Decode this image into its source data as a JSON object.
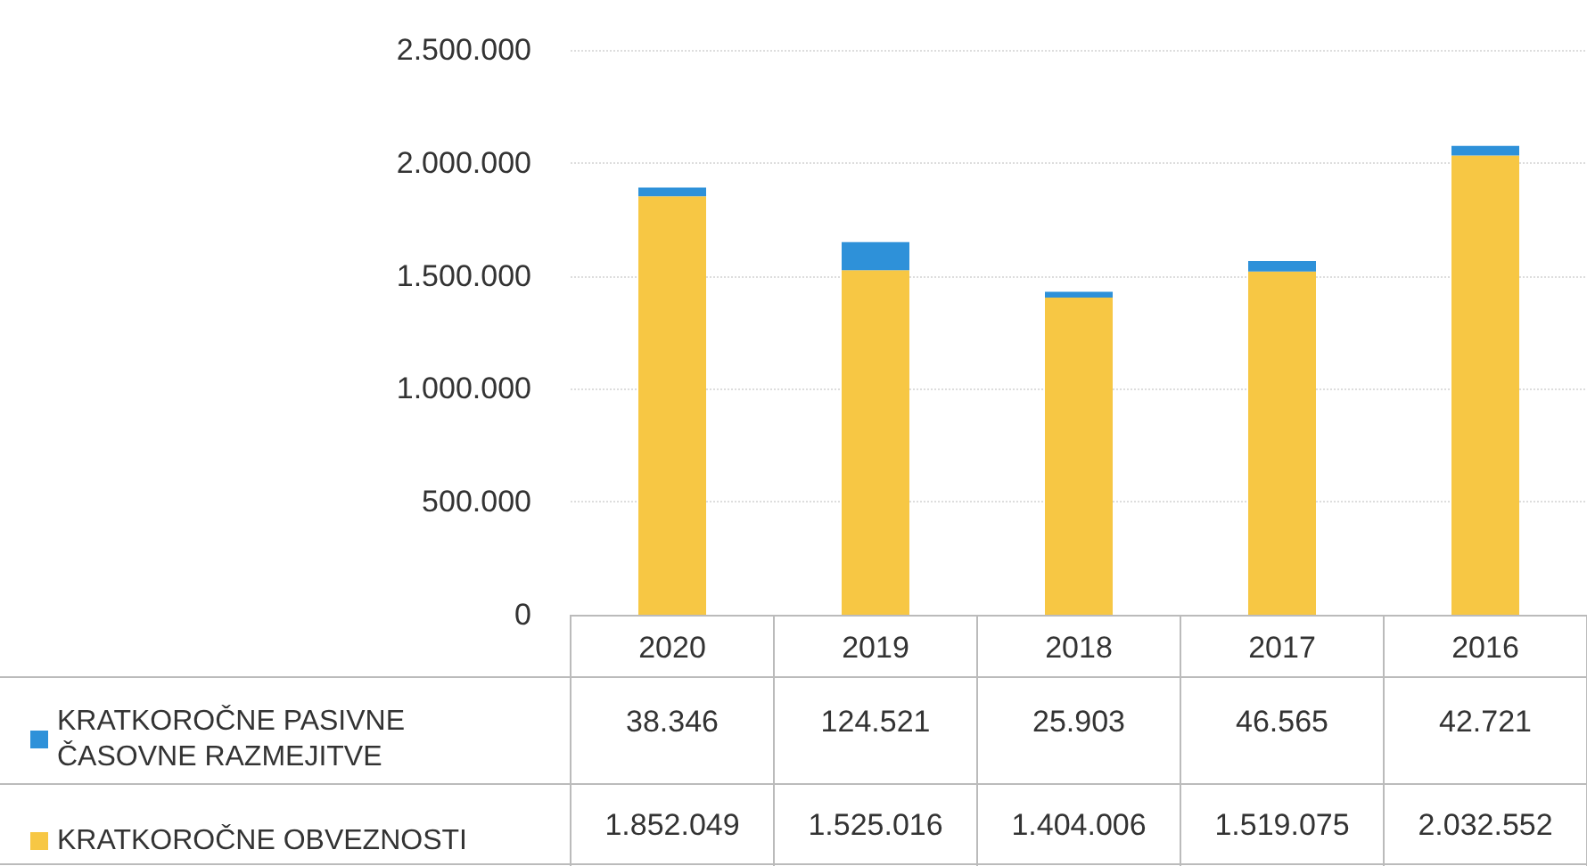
{
  "chart_data": {
    "type": "bar",
    "stacked": true,
    "categories": [
      "2020",
      "2019",
      "2018",
      "2017",
      "2016"
    ],
    "series": [
      {
        "name": "KRATKOROČNE OBVEZNOSTI",
        "color": "#f7c744",
        "values": [
          1852049,
          1525016,
          1404006,
          1519075,
          2032552
        ],
        "value_labels": [
          "1.852.049",
          "1.525.016",
          "1.404.006",
          "1.519.075",
          "2.032.552"
        ]
      },
      {
        "name": "KRATKOROČNE PASIVNE ČASOVNE RAZMEJITVE",
        "color": "#2e91d9",
        "values": [
          38346,
          124521,
          25903,
          46565,
          42721
        ],
        "value_labels": [
          "38.346",
          "124.521",
          "25.903",
          "46.565",
          "42.721"
        ]
      }
    ],
    "ylim": [
      0,
      2500000
    ],
    "yticks": [
      {
        "value": 0,
        "label": "0"
      },
      {
        "value": 500000,
        "label": "500.000"
      },
      {
        "value": 1000000,
        "label": "1.000.000"
      },
      {
        "value": 1500000,
        "label": "1.500.000"
      },
      {
        "value": 2000000,
        "label": "2.000.000"
      },
      {
        "value": 2500000,
        "label": "2.500.000"
      }
    ],
    "grid": "y",
    "legend": "bottom left"
  }
}
